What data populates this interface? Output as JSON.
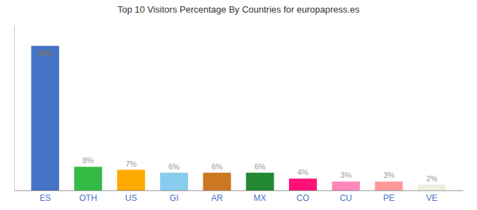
{
  "chart_data": {
    "type": "bar",
    "title": "Top 10 Visitors Percentage By Countries for europapress.es",
    "categories": [
      "ES",
      "OTH",
      "US",
      "GI",
      "AR",
      "MX",
      "CO",
      "CU",
      "PE",
      "VE"
    ],
    "values": [
      49,
      8,
      7,
      6,
      6,
      6,
      4,
      3,
      3,
      2
    ],
    "value_labels": [
      "49%",
      "8%",
      "7%",
      "6%",
      "6%",
      "6%",
      "4%",
      "3%",
      "3%",
      "2%"
    ],
    "colors": [
      "#4472c4",
      "#33bb44",
      "#ffaa00",
      "#88ccee",
      "#cc7722",
      "#228833",
      "#ff1177",
      "#ff88bb",
      "#ff9999",
      "#eeeedd"
    ],
    "ylim": [
      0,
      56
    ],
    "data_labels": true,
    "tick_labels": "x",
    "grid": false
  }
}
